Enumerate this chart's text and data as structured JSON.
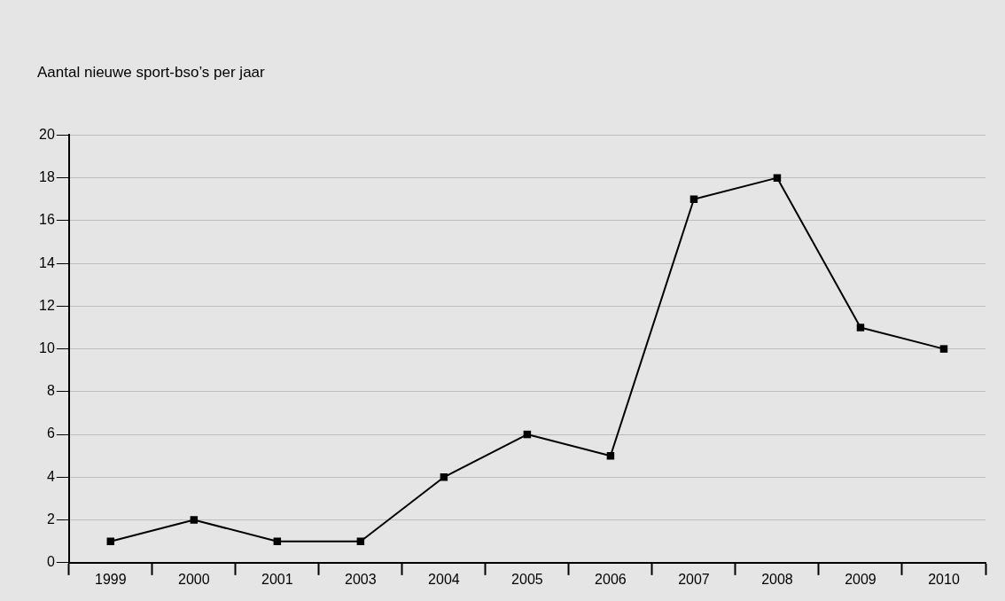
{
  "chart_data": {
    "type": "line",
    "title": "Aantal nieuwe sport-bso’s per jaar",
    "categories": [
      "1999",
      "2000",
      "2001",
      "2003",
      "2004",
      "2005",
      "2006",
      "2007",
      "2008",
      "2009",
      "2010"
    ],
    "series": [
      {
        "color": "#000000",
        "values": [
          1,
          2,
          1,
          1,
          4,
          6,
          5,
          17,
          18,
          11,
          10
        ]
      }
    ],
    "ylim": [
      0,
      20
    ],
    "yticks": [
      0,
      2,
      4,
      6,
      8,
      10,
      12,
      14,
      16,
      18,
      20
    ],
    "grid": "y",
    "legend": false,
    "marker": "square",
    "line_style": "solid"
  }
}
